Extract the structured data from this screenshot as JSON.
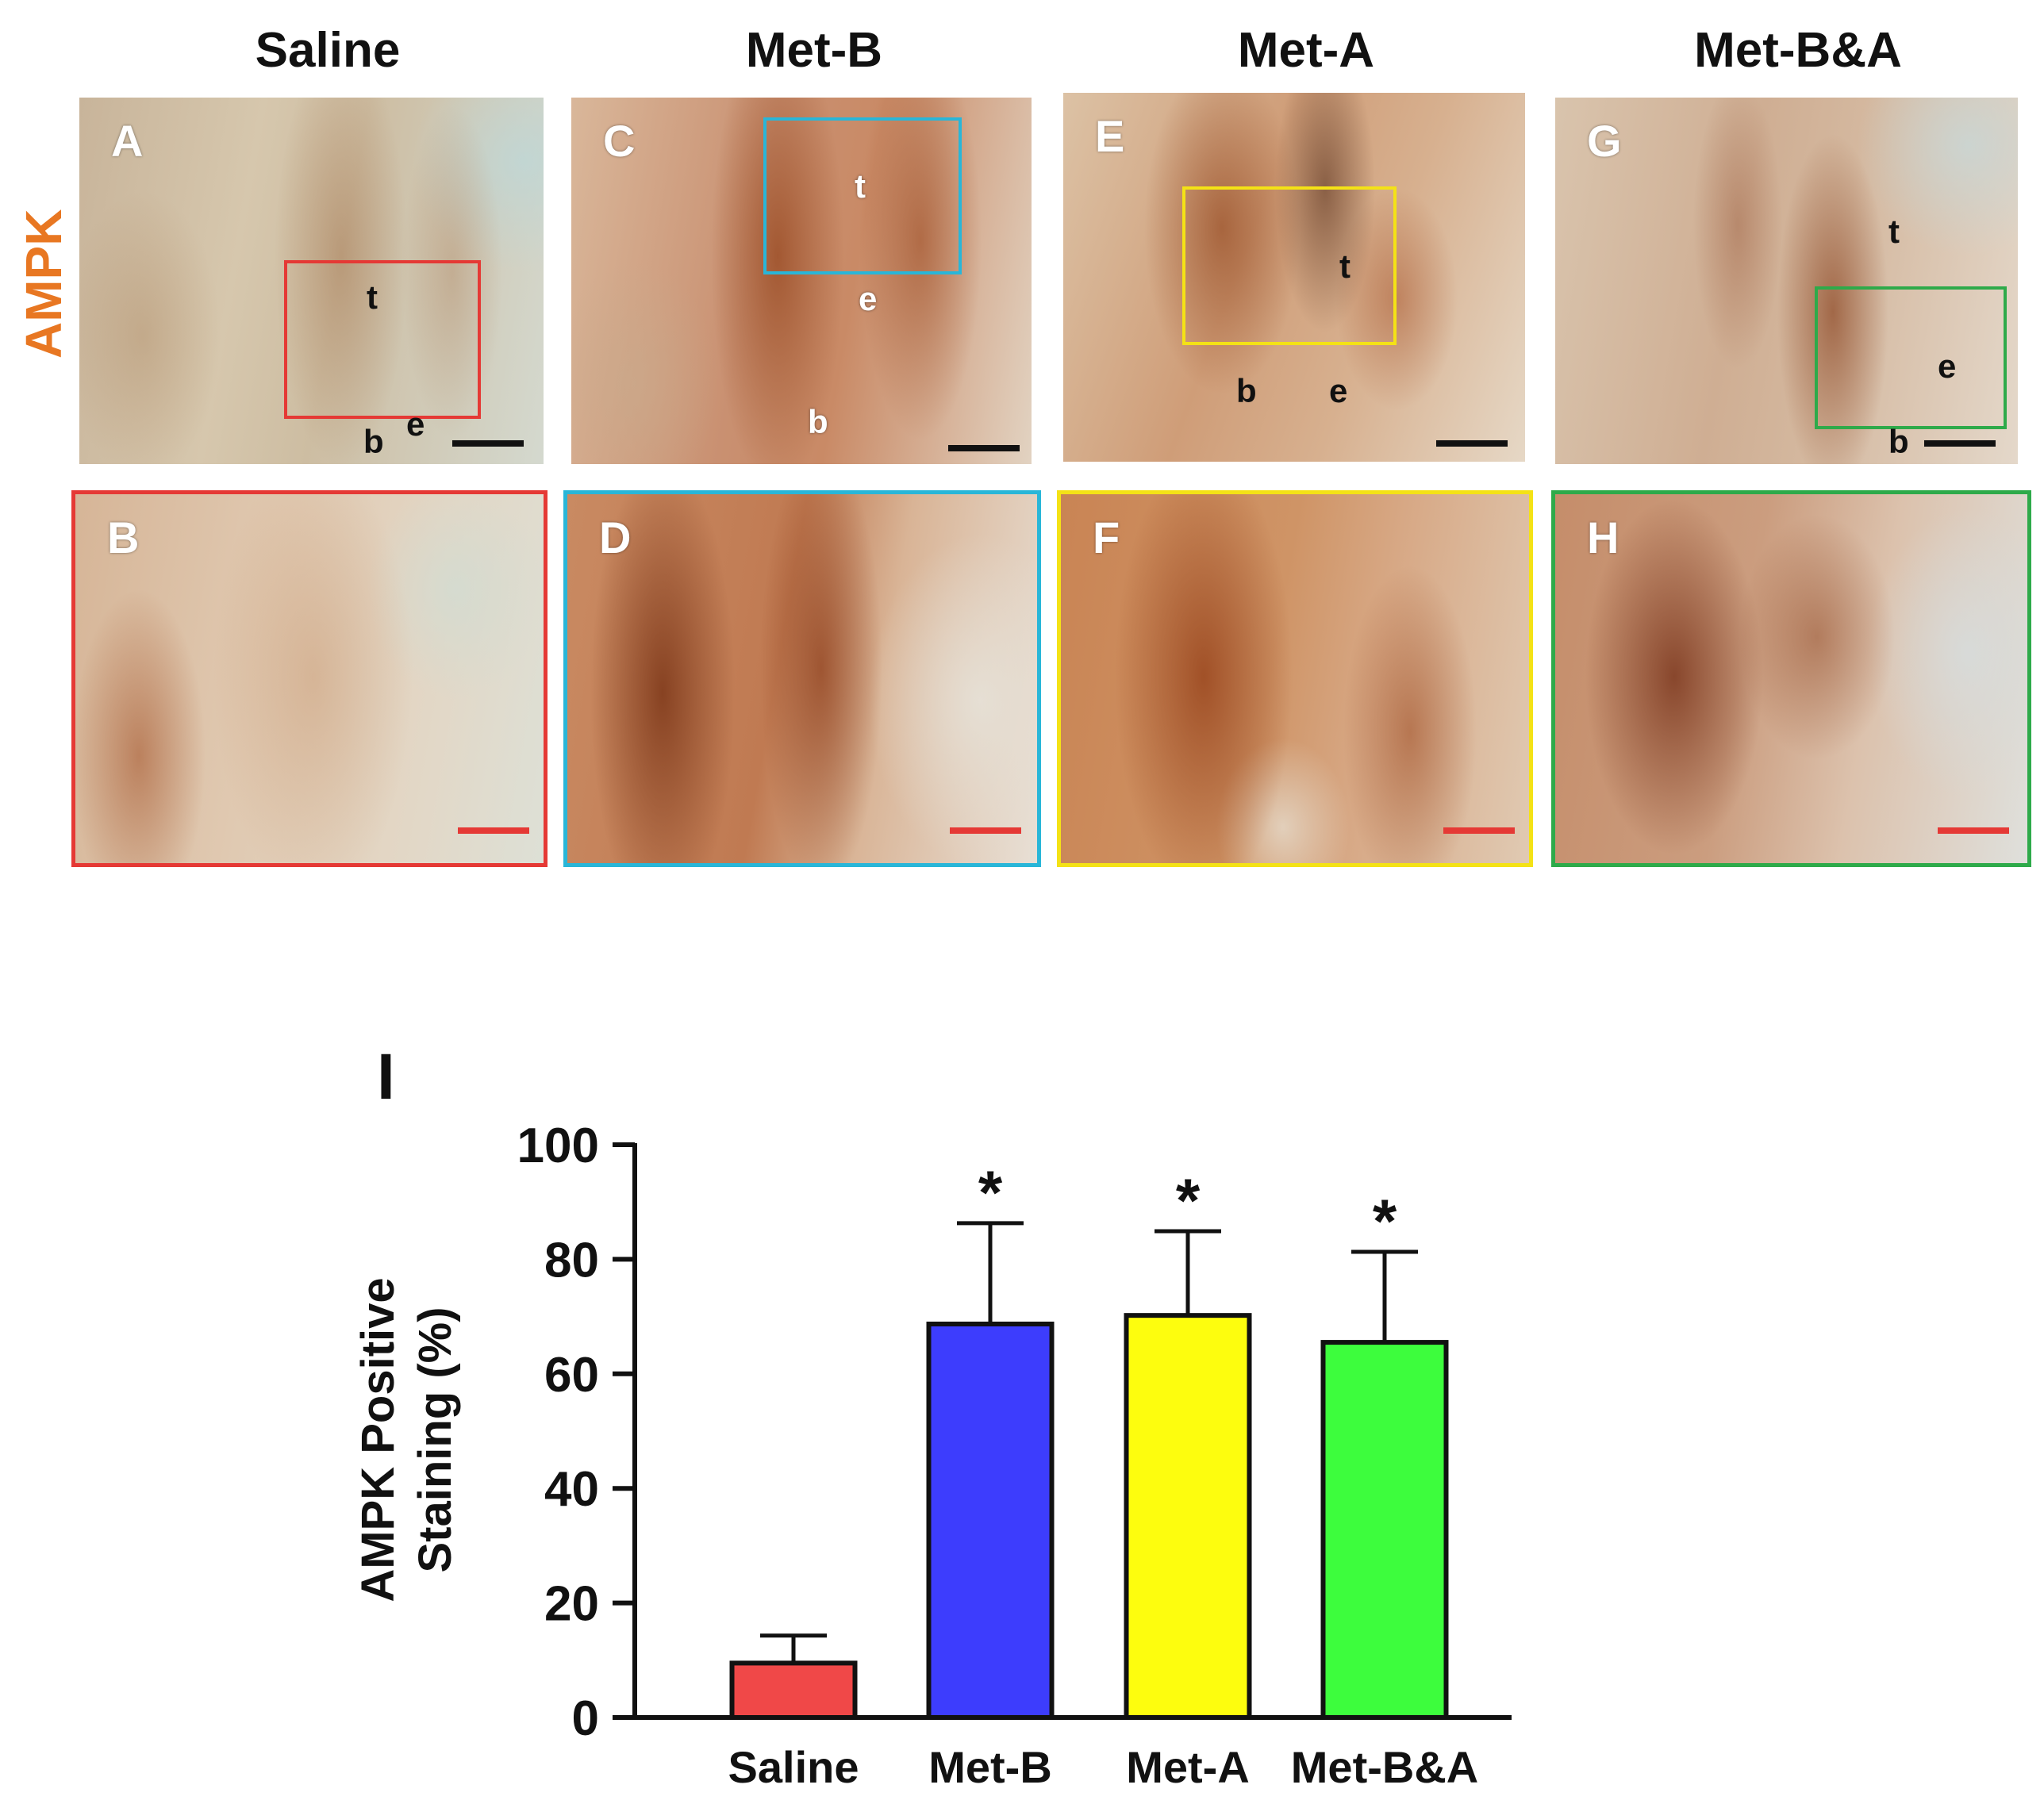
{
  "micrograph": {
    "stain_label": "AMPK",
    "columns": [
      {
        "title": "Saline",
        "top_label": "A",
        "zoom_label": "B",
        "box_color": "#e53935",
        "regions": [
          {
            "text": "t"
          },
          {
            "text": "b"
          },
          {
            "text": "e"
          }
        ]
      },
      {
        "title": "Met-B",
        "top_label": "C",
        "zoom_label": "D",
        "box_color": "#29b6d8",
        "regions": [
          {
            "text": "t"
          },
          {
            "text": "e"
          },
          {
            "text": "b"
          }
        ]
      },
      {
        "title": "Met-A",
        "top_label": "E",
        "zoom_label": "F",
        "box_color": "#f4e216",
        "regions": [
          {
            "text": "t"
          },
          {
            "text": "b"
          },
          {
            "text": "e"
          }
        ]
      },
      {
        "title": "Met-B&A",
        "top_label": "G",
        "zoom_label": "H",
        "box_color": "#2eaa4a",
        "regions": [
          {
            "text": "t"
          },
          {
            "text": "e"
          },
          {
            "text": "b"
          }
        ]
      }
    ],
    "scalebar_top_color": "#111111",
    "scalebar_zoom_color": "#e53935"
  },
  "chart_data": {
    "type": "bar",
    "panel_label": "I",
    "categories": [
      "Saline",
      "Met-B",
      "Met-A",
      "Met-B&A"
    ],
    "values": [
      9.5,
      68.7,
      70.2,
      65.5
    ],
    "errors": [
      4.8,
      17.6,
      14.7,
      15.8
    ],
    "significance": [
      "",
      "*",
      "*",
      "*"
    ],
    "colors": [
      "#f04848",
      "#3d3dfd",
      "#fdfd0e",
      "#3dfd3d"
    ],
    "ylabel_lines": [
      "AMPK Positive",
      "Staining (%)"
    ],
    "xlabel": "",
    "ylim": [
      0,
      100
    ],
    "yticks": [
      0,
      20,
      40,
      60,
      80,
      100
    ],
    "grid": false,
    "legend": "none"
  }
}
